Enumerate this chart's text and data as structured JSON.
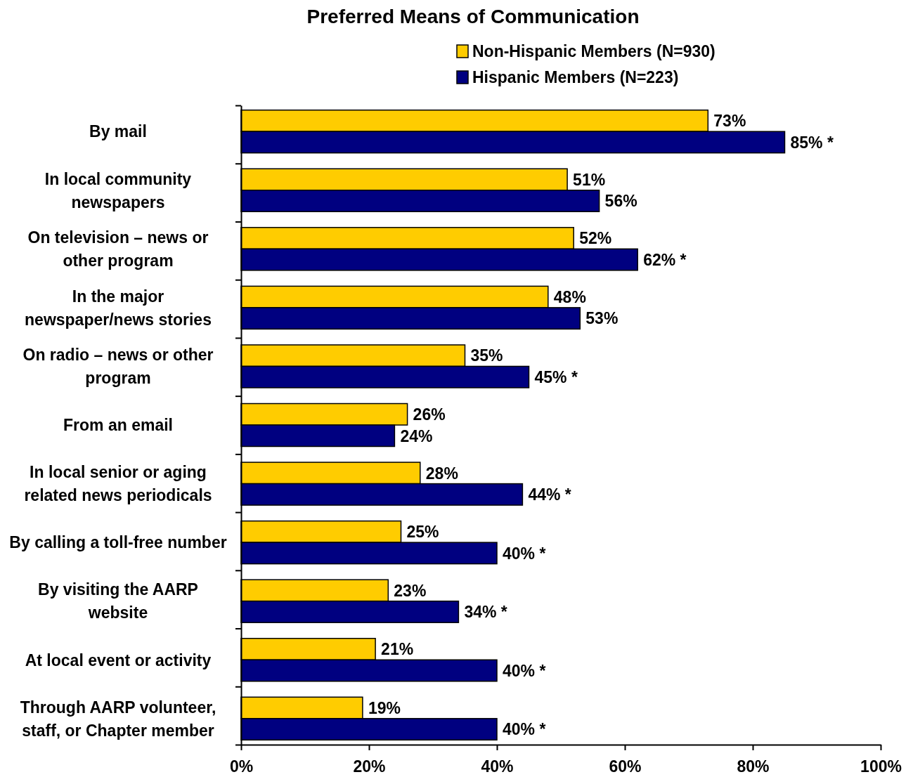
{
  "chart_data": {
    "type": "bar",
    "orientation": "horizontal",
    "title": "Preferred Means of Communication",
    "categories": [
      "By mail",
      "In local community newspapers",
      "On television – news or other program",
      "In the major newspaper/news stories",
      "On radio – news or other program",
      "From an email",
      "In local senior or aging related news periodicals",
      "By calling a toll-free number",
      "By visiting the AARP website",
      "At local event or activity",
      "Through AARP volunteer, staff, or Chapter member"
    ],
    "series": [
      {
        "name": "Non-Hispanic Members (N=930)",
        "color": "#ffcc00",
        "values": [
          73,
          51,
          52,
          48,
          35,
          26,
          28,
          25,
          23,
          21,
          19
        ],
        "value_labels": [
          "73%",
          "51%",
          "52%",
          "48%",
          "35%",
          "26%",
          "28%",
          "25%",
          "23%",
          "21%",
          "19%"
        ]
      },
      {
        "name": "Hispanic Members (N=223)",
        "color": "#000080",
        "values": [
          85,
          56,
          62,
          53,
          45,
          24,
          44,
          40,
          34,
          40,
          40
        ],
        "value_labels": [
          "85% *",
          "56%",
          "62% *",
          "53%",
          "45% *",
          "24%",
          "44% *",
          "40% *",
          "34% *",
          "40% *",
          "40% *"
        ]
      }
    ],
    "xlim": [
      0,
      100
    ],
    "xticks": [
      {
        "value": 0,
        "label": "0%"
      },
      {
        "value": 20,
        "label": "20%"
      },
      {
        "value": 40,
        "label": "40%"
      },
      {
        "value": 60,
        "label": "60%"
      },
      {
        "value": 80,
        "label": "80%"
      },
      {
        "value": 100,
        "label": "100%"
      }
    ],
    "grid": false,
    "legend": "top"
  }
}
